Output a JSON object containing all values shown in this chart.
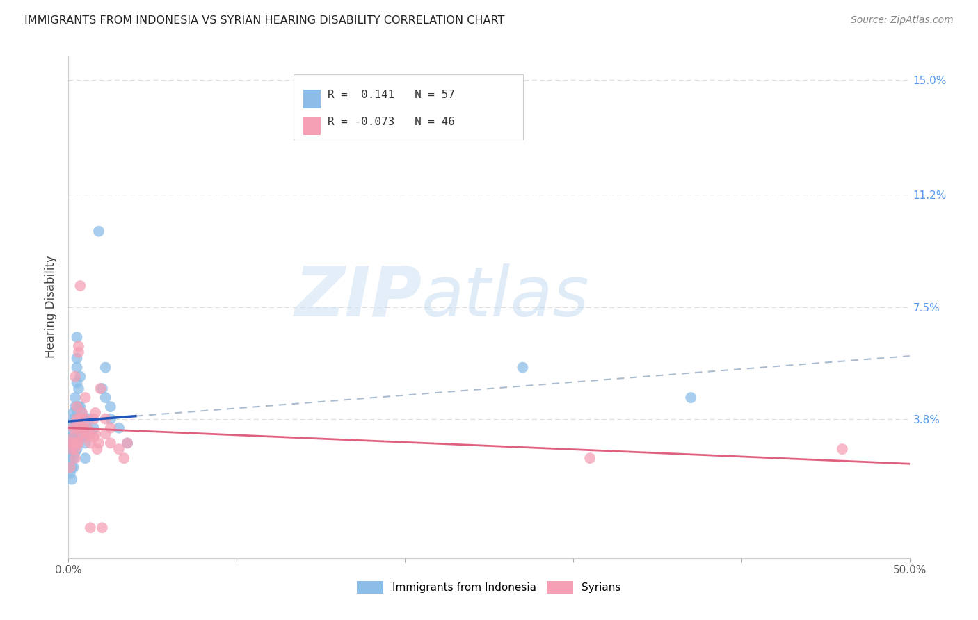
{
  "title": "IMMIGRANTS FROM INDONESIA VS SYRIAN HEARING DISABILITY CORRELATION CHART",
  "source": "Source: ZipAtlas.com",
  "ylabel": "Hearing Disability",
  "xlim": [
    0.0,
    0.5
  ],
  "ylim": [
    -0.008,
    0.158
  ],
  "r_indonesia": 0.141,
  "n_indonesia": 57,
  "r_syrian": -0.073,
  "n_syrian": 46,
  "indonesia_color": "#8bbde8",
  "syrian_color": "#f5a0b5",
  "trend_indonesia_solid_color": "#2255bb",
  "trend_indonesia_dash_color": "#aabbd0",
  "trend_syrian_color": "#e06080",
  "legend_label_indonesia": "Immigrants from Indonesia",
  "legend_label_syrian": "Syrians",
  "watermark_zip": "ZIP",
  "watermark_atlas": "atlas",
  "indonesia_scatter": [
    [
      0.001,
      0.02
    ],
    [
      0.001,
      0.025
    ],
    [
      0.001,
      0.03
    ],
    [
      0.001,
      0.028
    ],
    [
      0.002,
      0.022
    ],
    [
      0.002,
      0.032
    ],
    [
      0.002,
      0.018
    ],
    [
      0.002,
      0.035
    ],
    [
      0.003,
      0.025
    ],
    [
      0.003,
      0.03
    ],
    [
      0.003,
      0.033
    ],
    [
      0.003,
      0.038
    ],
    [
      0.003,
      0.04
    ],
    [
      0.003,
      0.028
    ],
    [
      0.003,
      0.022
    ],
    [
      0.004,
      0.032
    ],
    [
      0.004,
      0.035
    ],
    [
      0.004,
      0.027
    ],
    [
      0.004,
      0.042
    ],
    [
      0.004,
      0.038
    ],
    [
      0.004,
      0.045
    ],
    [
      0.004,
      0.03
    ],
    [
      0.005,
      0.033
    ],
    [
      0.005,
      0.04
    ],
    [
      0.005,
      0.036
    ],
    [
      0.005,
      0.028
    ],
    [
      0.005,
      0.05
    ],
    [
      0.005,
      0.055
    ],
    [
      0.005,
      0.065
    ],
    [
      0.005,
      0.058
    ],
    [
      0.006,
      0.038
    ],
    [
      0.006,
      0.042
    ],
    [
      0.006,
      0.032
    ],
    [
      0.006,
      0.048
    ],
    [
      0.007,
      0.038
    ],
    [
      0.007,
      0.042
    ],
    [
      0.007,
      0.052
    ],
    [
      0.007,
      0.035
    ],
    [
      0.008,
      0.04
    ],
    [
      0.008,
      0.032
    ],
    [
      0.009,
      0.038
    ],
    [
      0.01,
      0.03
    ],
    [
      0.01,
      0.025
    ],
    [
      0.011,
      0.035
    ],
    [
      0.012,
      0.038
    ],
    [
      0.013,
      0.033
    ],
    [
      0.015,
      0.035
    ],
    [
      0.018,
      0.1
    ],
    [
      0.02,
      0.048
    ],
    [
      0.022,
      0.045
    ],
    [
      0.022,
      0.055
    ],
    [
      0.025,
      0.042
    ],
    [
      0.025,
      0.038
    ],
    [
      0.03,
      0.035
    ],
    [
      0.035,
      0.03
    ],
    [
      0.27,
      0.055
    ],
    [
      0.37,
      0.045
    ]
  ],
  "syrian_scatter": [
    [
      0.001,
      0.022
    ],
    [
      0.002,
      0.03
    ],
    [
      0.002,
      0.028
    ],
    [
      0.003,
      0.035
    ],
    [
      0.003,
      0.03
    ],
    [
      0.003,
      0.032
    ],
    [
      0.004,
      0.052
    ],
    [
      0.004,
      0.028
    ],
    [
      0.004,
      0.025
    ],
    [
      0.005,
      0.038
    ],
    [
      0.005,
      0.042
    ],
    [
      0.005,
      0.03
    ],
    [
      0.005,
      0.035
    ],
    [
      0.006,
      0.06
    ],
    [
      0.006,
      0.062
    ],
    [
      0.006,
      0.03
    ],
    [
      0.007,
      0.082
    ],
    [
      0.007,
      0.038
    ],
    [
      0.007,
      0.035
    ],
    [
      0.008,
      0.04
    ],
    [
      0.008,
      0.033
    ],
    [
      0.009,
      0.035
    ],
    [
      0.01,
      0.032
    ],
    [
      0.01,
      0.038
    ],
    [
      0.01,
      0.045
    ],
    [
      0.011,
      0.035
    ],
    [
      0.012,
      0.033
    ],
    [
      0.013,
      0.03
    ],
    [
      0.013,
      0.002
    ],
    [
      0.015,
      0.032
    ],
    [
      0.015,
      0.038
    ],
    [
      0.016,
      0.04
    ],
    [
      0.016,
      0.033
    ],
    [
      0.017,
      0.028
    ],
    [
      0.018,
      0.03
    ],
    [
      0.019,
      0.048
    ],
    [
      0.02,
      0.002
    ],
    [
      0.022,
      0.033
    ],
    [
      0.022,
      0.038
    ],
    [
      0.025,
      0.03
    ],
    [
      0.025,
      0.035
    ],
    [
      0.03,
      0.028
    ],
    [
      0.033,
      0.025
    ],
    [
      0.035,
      0.03
    ],
    [
      0.46,
      0.028
    ],
    [
      0.31,
      0.025
    ]
  ]
}
